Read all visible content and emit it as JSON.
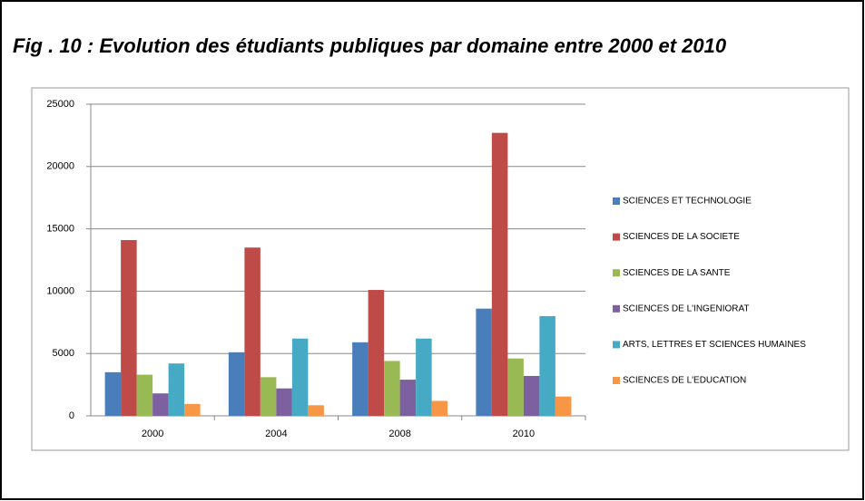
{
  "chart_data": {
    "type": "bar",
    "title": "Fig . 10 : Evolution des étudiants publiques par domaine entre 2000 et 2010",
    "categories": [
      "2000",
      "2004",
      "2008",
      "2010"
    ],
    "series": [
      {
        "name": "SCIENCES ET TECHNOLOGIE",
        "color": "#4a7ebb",
        "values": [
          3500,
          5100,
          5900,
          8600
        ]
      },
      {
        "name": "SCIENCES DE LA SOCIETE",
        "color": "#be4b48",
        "values": [
          14100,
          13500,
          10100,
          22700
        ]
      },
      {
        "name": "SCIENCES DE LA SANTE",
        "color": "#98b954",
        "values": [
          3300,
          3100,
          4400,
          4600
        ]
      },
      {
        "name": "SCIENCES DE L'INGENIORAT",
        "color": "#7d60a0",
        "values": [
          1800,
          2200,
          2900,
          3200
        ]
      },
      {
        "name": "ARTS, LETTRES ET SCIENCES HUMAINES",
        "color": "#46aac5",
        "values": [
          4200,
          6200,
          6200,
          8000
        ]
      },
      {
        "name": "SCIENCES DE L'EDUCATION",
        "color": "#f79646",
        "values": [
          950,
          850,
          1200,
          1550
        ]
      }
    ],
    "ylim": [
      0,
      25000
    ],
    "yticks": [
      0,
      5000,
      10000,
      15000,
      20000,
      25000
    ],
    "grid": true,
    "legend": "right"
  }
}
